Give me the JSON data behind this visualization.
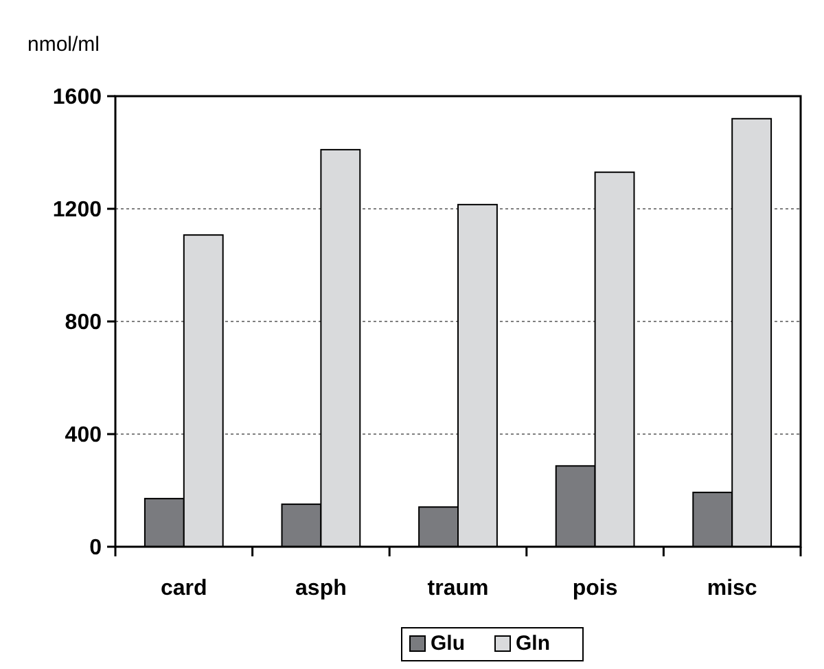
{
  "chart_data": {
    "type": "bar",
    "ylabel": "nmol/ml",
    "categories": [
      "card",
      "asph",
      "traum",
      "pois",
      "misc"
    ],
    "series": [
      {
        "name": "Glu",
        "color": "#7a7b7f",
        "values": [
          171,
          151,
          141,
          287,
          193
        ]
      },
      {
        "name": "Gln",
        "color": "#d9dadc",
        "values": [
          1107,
          1410,
          1215,
          1330,
          1520
        ]
      }
    ],
    "ylim": [
      0,
      1600
    ],
    "yticks": [
      0,
      400,
      800,
      1200,
      1600
    ],
    "grid": "y",
    "legend": "bottom"
  }
}
